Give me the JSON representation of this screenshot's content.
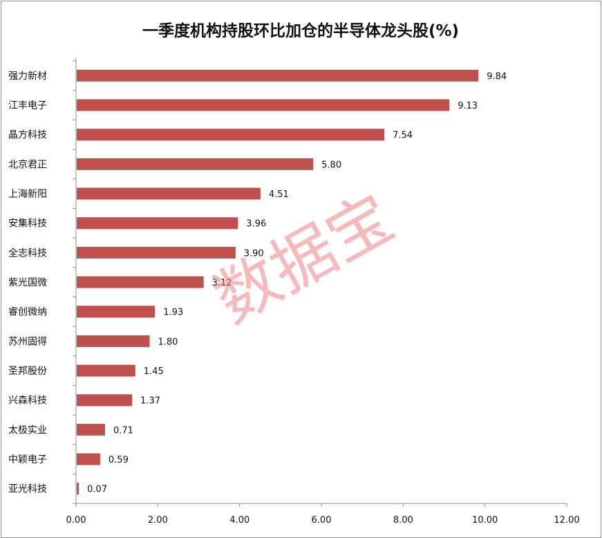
{
  "chart_data": {
    "type": "bar",
    "orientation": "horizontal",
    "title": "一季度机构持股环比加仓的半导体龙头股(%)",
    "categories": [
      "强力新材",
      "江丰电子",
      "晶方科技",
      "北京君正",
      "上海新阳",
      "安集科技",
      "全志科技",
      "紫光国微",
      "睿创微纳",
      "苏州固得",
      "圣邦股份",
      "兴森科技",
      "太极实业",
      "中颖电子",
      "亚光科技"
    ],
    "values": [
      9.84,
      9.13,
      7.54,
      5.8,
      4.51,
      3.96,
      3.9,
      3.12,
      1.93,
      1.8,
      1.45,
      1.37,
      0.71,
      0.59,
      0.07
    ],
    "value_labels": [
      "9.84",
      "9.13",
      "7.54",
      "5.80",
      "4.51",
      "3.96",
      "3.90",
      "3.12",
      "1.93",
      "1.80",
      "1.45",
      "1.37",
      "0.71",
      "0.59",
      "0.07"
    ],
    "xlim": [
      0,
      12
    ],
    "xticks": [
      0,
      2,
      4,
      6,
      8,
      10,
      12
    ],
    "xtick_labels": [
      "0.00",
      "2.00",
      "4.00",
      "6.00",
      "8.00",
      "10.00",
      "12.00"
    ],
    "grid": false,
    "legend": "none",
    "bar_color": "#c0504d"
  },
  "watermark": "数据宝"
}
